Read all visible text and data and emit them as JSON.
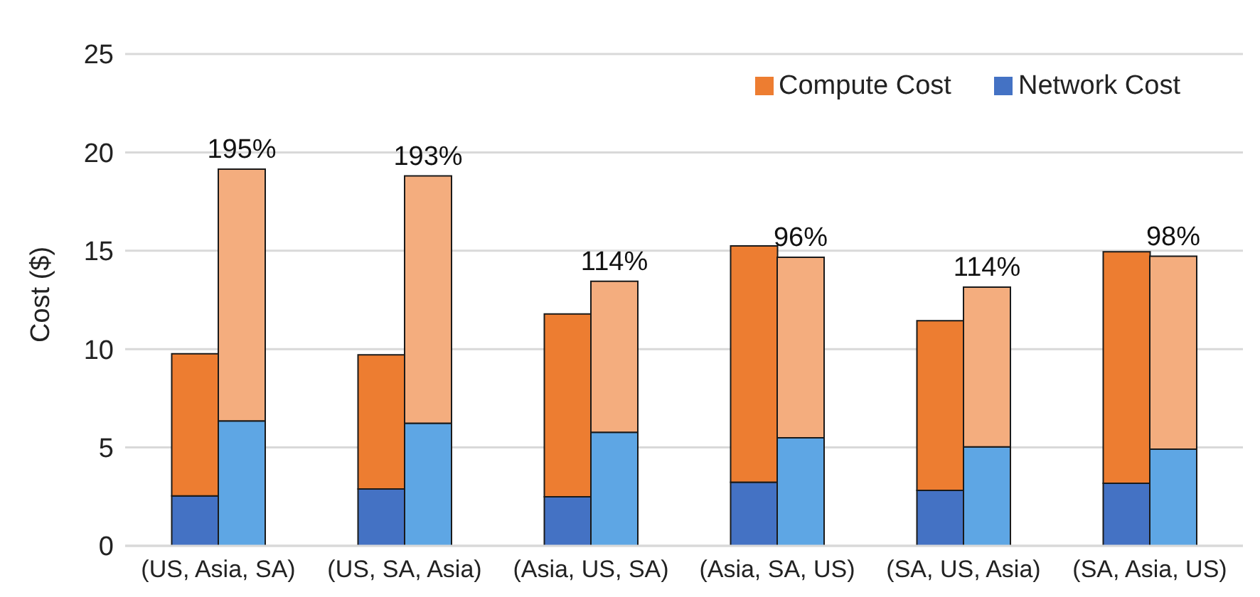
{
  "chart_data": {
    "type": "bar",
    "ylabel": "Cost ($)",
    "stacked": true,
    "categories": [
      null,
      "(US, Asia, SA)",
      null,
      null,
      null,
      "(US, SA, Asia)",
      null,
      null,
      null,
      "(Asia, US, SA)",
      null,
      null,
      null,
      "(Asia, SA, US)",
      null,
      null,
      null,
      "(SA, US, Asia)",
      null,
      null,
      null,
      "(SA, Asia, US)",
      null,
      null
    ],
    "series": [
      {
        "name": "Network Cost",
        "color": "#4472c4",
        "values": [
          null,
          2.54,
          null,
          null,
          null,
          2.89,
          null,
          null,
          null,
          2.49,
          null,
          null,
          null,
          3.23,
          null,
          null,
          null,
          2.82,
          null,
          null,
          null,
          3.18,
          null,
          null
        ]
      },
      {
        "name": "Compute Cost",
        "color": "#ed7d31",
        "values": [
          null,
          7.22,
          null,
          null,
          null,
          6.82,
          null,
          null,
          null,
          9.3,
          null,
          null,
          null,
          12.02,
          null,
          null,
          null,
          8.62,
          null,
          null,
          null,
          11.77,
          null,
          null
        ]
      },
      {
        "color": "#5ea6e4",
        "values": [
          null,
          null,
          6.35,
          null,
          null,
          null,
          6.23,
          null,
          null,
          null,
          5.77,
          null,
          null,
          null,
          5.49,
          null,
          null,
          null,
          5.03,
          null,
          null,
          null,
          4.91,
          null
        ]
      },
      {
        "color": "#f4ad7e",
        "values": [
          null,
          null,
          12.8,
          null,
          null,
          null,
          12.57,
          null,
          null,
          null,
          7.68,
          null,
          null,
          null,
          9.18,
          null,
          null,
          null,
          8.12,
          null,
          null,
          null,
          9.81,
          null
        ]
      }
    ],
    "annotations": [
      "195%",
      "193%",
      "114%",
      "96%",
      "114%",
      "98%"
    ],
    "ylim": [
      0,
      25
    ],
    "yticks": [
      0,
      5,
      10,
      15,
      20,
      25
    ],
    "grid": "y",
    "legend": "top right"
  }
}
